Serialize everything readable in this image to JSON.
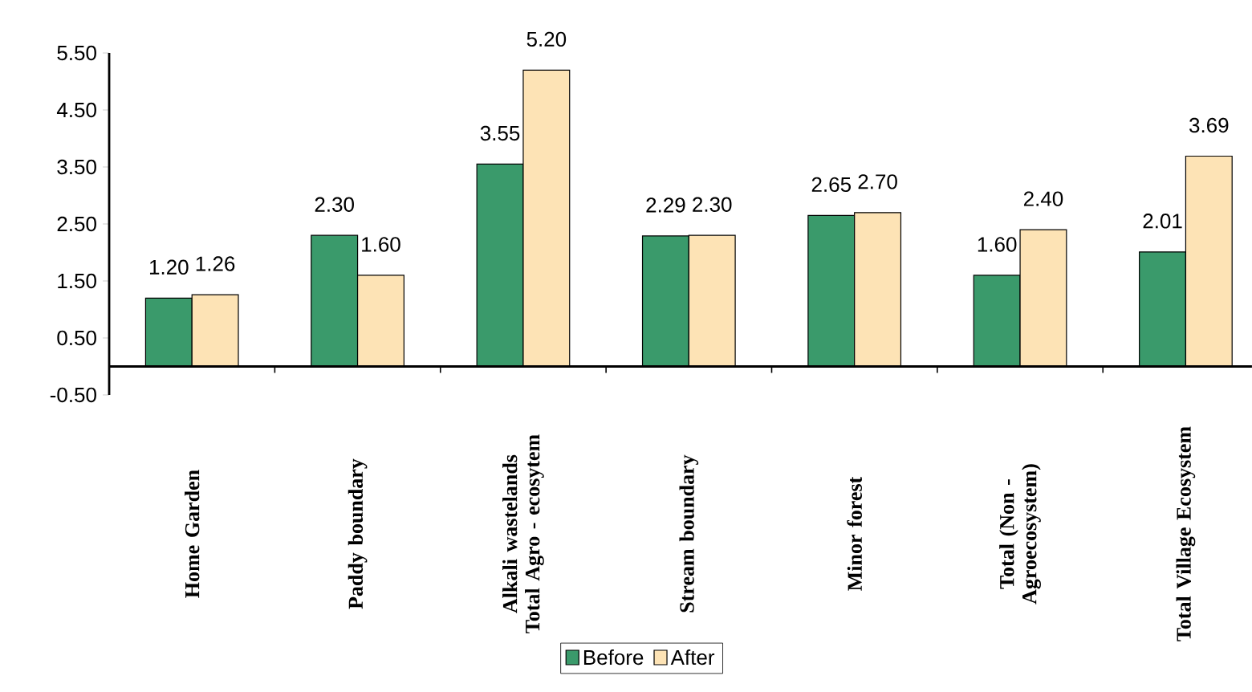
{
  "chart_data": {
    "type": "bar",
    "categories": [
      "Home Garden",
      "Paddy boundary",
      "Alkali wastelands Total Agro - ecosytem",
      "Stream boundary",
      "Minor forest",
      "Total (Non - Agroecosystem)",
      "Total Village Ecosystem"
    ],
    "series": [
      {
        "name": "Before",
        "color": "#3a9a6b",
        "values": [
          1.2,
          2.3,
          3.55,
          2.29,
          2.65,
          1.6,
          2.01
        ],
        "value_labels": [
          "1.20",
          "2.30",
          "3.55",
          "2.29",
          "2.65",
          "1.60",
          "2.01"
        ]
      },
      {
        "name": "After",
        "color": "#fde3b5",
        "values": [
          1.26,
          1.6,
          5.2,
          2.3,
          2.7,
          2.4,
          3.69
        ],
        "value_labels": [
          "1.26",
          "1.60",
          "5.20",
          "2.30",
          "2.70",
          "2.40",
          "3.69"
        ]
      }
    ],
    "ylim": [
      -0.5,
      5.5
    ],
    "yticks": [
      {
        "value": -0.5,
        "label": "-0.50"
      },
      {
        "value": 0.5,
        "label": "0.50"
      },
      {
        "value": 1.5,
        "label": "1.50"
      },
      {
        "value": 2.5,
        "label": "2.50"
      },
      {
        "value": 3.5,
        "label": "3.50"
      },
      {
        "value": 4.5,
        "label": "4.50"
      },
      {
        "value": 5.5,
        "label": "5.50"
      }
    ],
    "grid": false,
    "legend": "bottom"
  }
}
